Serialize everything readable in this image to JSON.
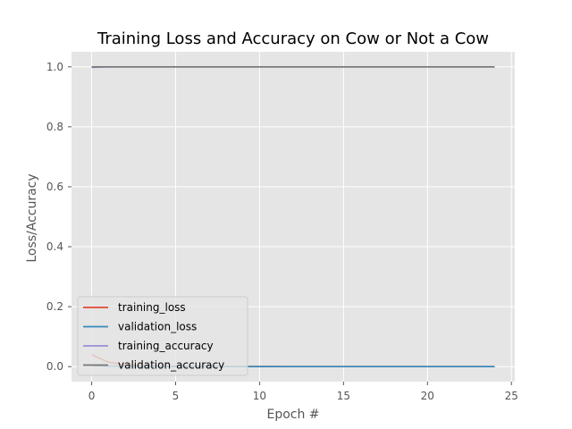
{
  "chart_data": {
    "type": "line",
    "title": "Training Loss and Accuracy on Cow or Not  a Cow",
    "xlabel": "Epoch #",
    "ylabel": "Loss/Accuracy",
    "xlim": [
      -1.2,
      25.2
    ],
    "ylim": [
      -0.05,
      1.05
    ],
    "xticks": [
      0,
      5,
      10,
      15,
      20,
      25
    ],
    "yticks": [
      0.0,
      0.2,
      0.4,
      0.6,
      0.8,
      1.0
    ],
    "xtick_labels": [
      "0",
      "5",
      "10",
      "15",
      "20",
      "25"
    ],
    "ytick_labels": [
      "0.0",
      "0.2",
      "0.4",
      "0.6",
      "0.8",
      "1.0"
    ],
    "grid": true,
    "legend_position": "lower-left",
    "x": [
      0,
      1,
      2,
      3,
      4,
      5,
      6,
      7,
      8,
      9,
      10,
      11,
      12,
      13,
      14,
      15,
      16,
      17,
      18,
      19,
      20,
      21,
      22,
      23,
      24
    ],
    "series": [
      {
        "name": "training_loss",
        "color": "#E24A33",
        "values": [
          0.04,
          0.015,
          0.006,
          0.003,
          0.002,
          0.001,
          0.001,
          0.0008,
          0.0006,
          0.0005,
          0.0004,
          0.0004,
          0.0003,
          0.0003,
          0.0003,
          0.0002,
          0.0002,
          0.0002,
          0.0002,
          0.0002,
          0.0001,
          0.0001,
          0.0001,
          0.0001,
          0.0001
        ]
      },
      {
        "name": "validation_loss",
        "color": "#348ABD",
        "values": [
          0.004,
          0.002,
          0.001,
          0.0008,
          0.0005,
          0.0004,
          0.0003,
          0.0003,
          0.0002,
          0.0002,
          0.0002,
          0.0002,
          0.0001,
          0.0001,
          0.0001,
          0.0001,
          0.0001,
          0.0001,
          0.0001,
          0.0001,
          0.0001,
          0.0001,
          0.0001,
          0.0001,
          0.0001
        ]
      },
      {
        "name": "training_accuracy",
        "color": "#988ED5",
        "values": [
          0.998,
          1.0,
          1.0,
          1.0,
          1.0,
          1.0,
          1.0,
          1.0,
          1.0,
          1.0,
          1.0,
          1.0,
          1.0,
          1.0,
          1.0,
          1.0,
          1.0,
          1.0,
          1.0,
          1.0,
          1.0,
          1.0,
          1.0,
          1.0,
          1.0
        ]
      },
      {
        "name": "validation_accuracy",
        "color": "#777777",
        "values": [
          1.0,
          1.0,
          1.0,
          1.0,
          1.0,
          1.0,
          1.0,
          1.0,
          1.0,
          1.0,
          1.0,
          1.0,
          1.0,
          1.0,
          1.0,
          1.0,
          1.0,
          1.0,
          1.0,
          1.0,
          1.0,
          1.0,
          1.0,
          1.0,
          1.0
        ]
      }
    ]
  }
}
